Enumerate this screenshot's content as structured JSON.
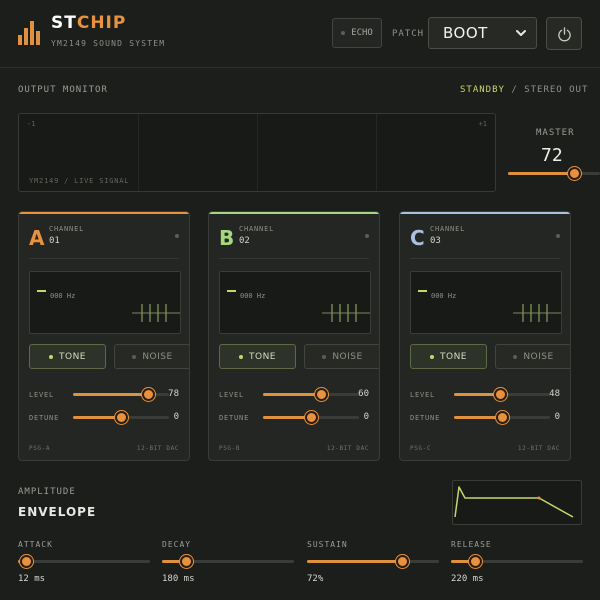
{
  "header": {
    "brand_a": "ST",
    "brand_b": "CHIP",
    "subtitle": "YM2149 SOUND SYSTEM",
    "echo_label": "ECHO",
    "patch_label": "PATCH",
    "patch_value": "BOOT",
    "icons": {
      "logo": "bar-chart-logo-icon",
      "power": "power-icon",
      "chevron": "chevron-down-icon"
    }
  },
  "monitor": {
    "label": "OUTPUT MONITOR",
    "status_on": "STANDBY",
    "status_sep": "/",
    "status_off": "STEREO OUT",
    "scope_left": "-1",
    "scope_right": "+1",
    "scope_caption": "YM2149 / LIVE SIGNAL"
  },
  "master": {
    "label": "MASTER",
    "value": "72",
    "level": 72
  },
  "channels": [
    {
      "letter": "A",
      "label": "CHANNEL",
      "num": "01",
      "color": "#e8913e",
      "hz": "000 Hz",
      "tone": "TONE",
      "noise": "NOISE",
      "level_label": "LEVEL",
      "level": "78",
      "detune_label": "DETUNE",
      "detune": "0",
      "foot_left": "PSG-A",
      "foot_right": "12-BIT DAC"
    },
    {
      "letter": "B",
      "label": "CHANNEL",
      "num": "02",
      "color": "#a6d67d",
      "hz": "000 Hz",
      "tone": "TONE",
      "noise": "NOISE",
      "level_label": "LEVEL",
      "level": "60",
      "detune_label": "DETUNE",
      "detune": "0",
      "foot_left": "PSG-B",
      "foot_right": "12-BIT DAC"
    },
    {
      "letter": "C",
      "label": "CHANNEL",
      "num": "03",
      "color": "#a9c0e0",
      "hz": "000 Hz",
      "tone": "TONE",
      "noise": "NOISE",
      "level_label": "LEVEL",
      "level": "48",
      "detune_label": "DETUNE",
      "detune": "0",
      "foot_left": "PSG-C",
      "foot_right": "12-BIT DAC"
    }
  ],
  "channel_detune_fraction": 0.5,
  "envelope": {
    "label": "AMPLITUDE",
    "title": "ENVELOPE",
    "params": [
      {
        "name": "ATTACK",
        "value": "12 ms",
        "fraction": 0.06
      },
      {
        "name": "DECAY",
        "value": "180 ms",
        "fraction": 0.18
      },
      {
        "name": "SUSTAIN",
        "value": "72%",
        "fraction": 0.72
      },
      {
        "name": "RELEASE",
        "value": "220 ms",
        "fraction": 0.18
      }
    ]
  },
  "colors": {
    "accent": "#e8913e",
    "active": "#cfd66a"
  }
}
